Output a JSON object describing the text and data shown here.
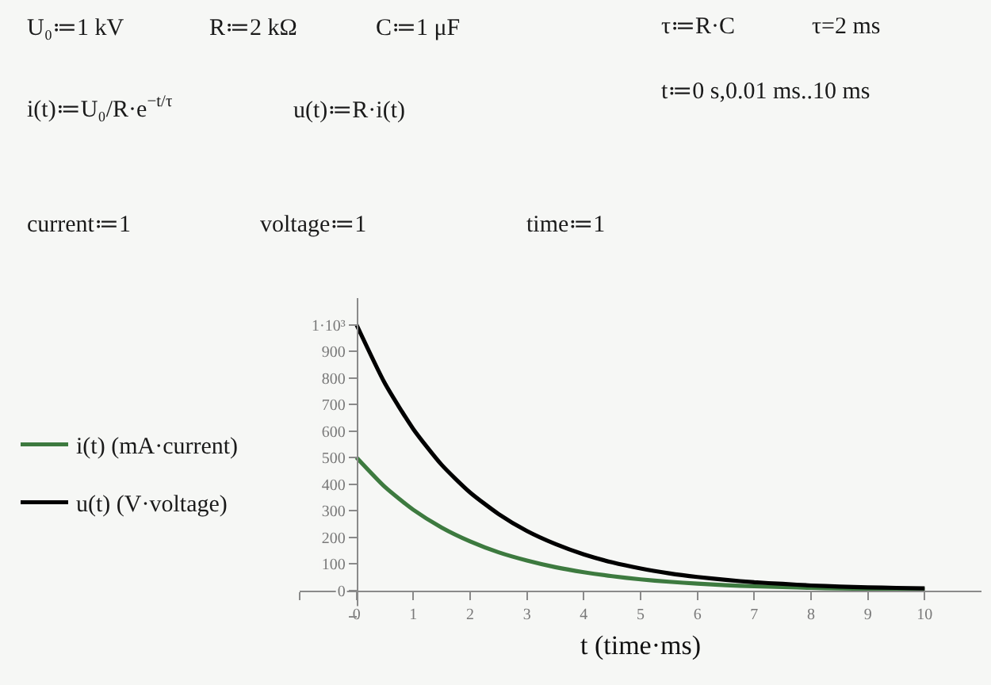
{
  "chart_data": {
    "type": "line",
    "xlabel": "t (time·ms)",
    "x": [
      0,
      0.5,
      1,
      1.5,
      2,
      2.5,
      3,
      3.5,
      4,
      4.5,
      5,
      5.5,
      6,
      6.5,
      7,
      7.5,
      8,
      8.5,
      9,
      9.5,
      10
    ],
    "xlim": [
      -1,
      11
    ],
    "xticks": [
      {
        "value": -1,
        "label": null
      },
      0,
      1,
      2,
      3,
      4,
      5,
      6,
      7,
      8,
      9,
      10
    ],
    "ylim": [
      -100,
      1100
    ],
    "yticks": [
      {
        "value": -100,
        "label": null
      },
      0,
      100,
      200,
      300,
      400,
      500,
      600,
      700,
      800,
      900,
      {
        "value": 1000,
        "label": "1·10³"
      }
    ],
    "series": [
      {
        "name": "i(t) (mA·current)",
        "color": "#3d7a3f",
        "values": [
          500,
          389,
          303,
          236,
          184,
          143,
          112,
          87,
          68,
          53,
          41,
          32,
          25,
          19,
          15,
          12,
          9,
          7,
          6,
          4,
          3
        ]
      },
      {
        "name": "u(t) (V·voltage)",
        "color": "#000000",
        "values": [
          1000,
          779,
          607,
          472,
          368,
          287,
          223,
          174,
          135,
          105,
          82,
          64,
          50,
          39,
          30,
          24,
          18,
          14,
          11,
          9,
          7
        ]
      }
    ],
    "legend": "left",
    "annotations": [
      "U₀≔1 kV",
      "R≔2 kΩ",
      "C≔1 μF",
      "τ≔R·C",
      "τ=2 ms",
      "i(t)≔U₀/R·e$^{−t/τ}$",
      "u(t)≔R·i(t)",
      "t≔0 s,0.01 ms..10 ms",
      "current≔1",
      "voltage≔1",
      "time≔1"
    ]
  }
}
